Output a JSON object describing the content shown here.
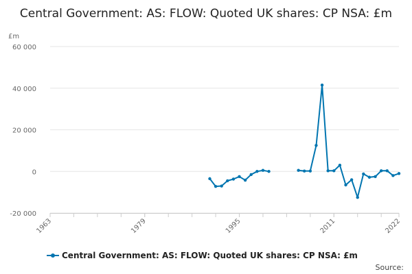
{
  "chart_data": {
    "type": "line",
    "title": "Central Government: AS: FLOW: Quoted UK shares: CP NSA: £m",
    "ylabel": "£m",
    "xlabel": "",
    "ylim": [
      -20000,
      60000
    ],
    "xlim": [
      1963,
      2022
    ],
    "yticks": [
      "60 000",
      "40 000",
      "20 000",
      "0",
      "-20 000"
    ],
    "ytick_values": [
      60000,
      40000,
      20000,
      0,
      -20000
    ],
    "xticks": [
      "1963",
      "1979",
      "1995",
      "2011",
      "2022"
    ],
    "xtick_values": [
      1963,
      1979,
      1995,
      2011,
      2022
    ],
    "grid": "horizontal",
    "legend_position": "bottom",
    "series": [
      {
        "name": "Central Government: AS: FLOW: Quoted UK shares: CP NSA: £m",
        "color": "#0075b0",
        "segments": [
          {
            "x": [
              1990,
              1991,
              1992,
              1993,
              1994,
              1995,
              1996,
              1997,
              1998,
              1999,
              2000
            ],
            "y": [
              -3500,
              -7200,
              -7000,
              -4500,
              -3700,
              -2500,
              -4200,
              -1500,
              0,
              500,
              0
            ]
          },
          {
            "x": [
              2005,
              2006,
              2007,
              2008,
              2009,
              2010,
              2011,
              2012,
              2013,
              2014,
              2015,
              2016,
              2017,
              2018,
              2019,
              2020,
              2021,
              2022
            ],
            "y": [
              500,
              200,
              200,
              12500,
              41500,
              300,
              300,
              3000,
              -6500,
              -4000,
              -12500,
              -1200,
              -2800,
              -2500,
              300,
              300,
              -2000,
              -1000
            ]
          }
        ]
      }
    ]
  },
  "legend": {
    "label": "Central Government: AS: FLOW: Quoted UK shares: CP NSA: £m"
  },
  "footer": {
    "source_label": "Source:"
  }
}
